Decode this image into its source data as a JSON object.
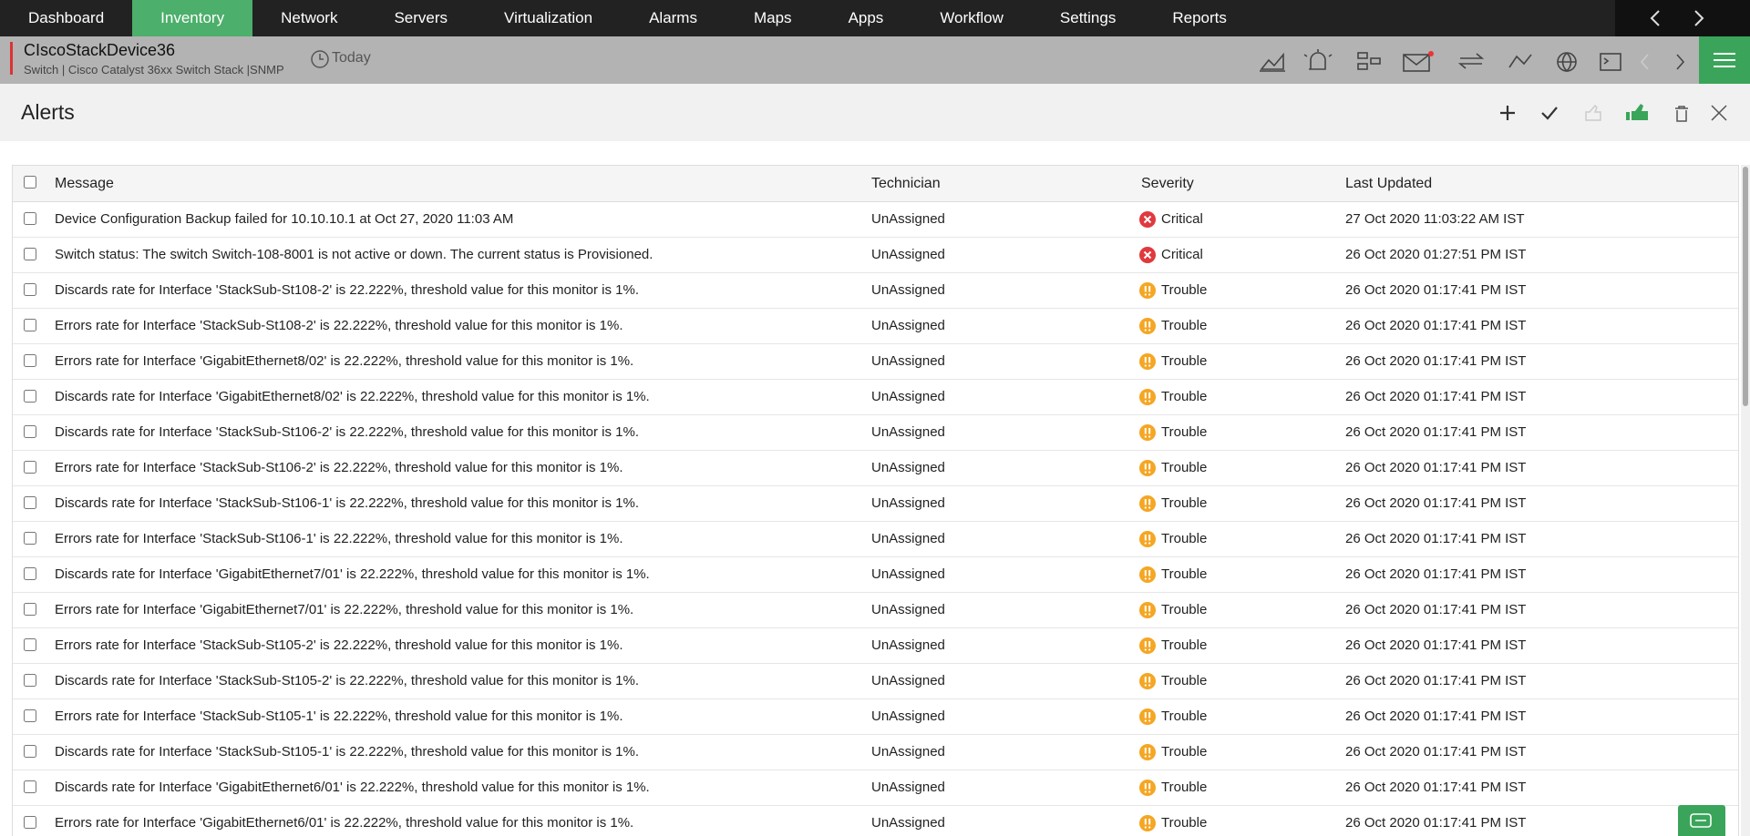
{
  "nav": {
    "items": [
      "Dashboard",
      "Inventory",
      "Network",
      "Servers",
      "Virtualization",
      "Alarms",
      "Maps",
      "Apps",
      "Workflow",
      "Settings",
      "Reports"
    ],
    "active": "Inventory"
  },
  "device": {
    "name": "CIscoStackDevice36",
    "subtitle": "Switch | Cisco Catalyst 36xx Switch Stack  |SNMP",
    "period": "Today"
  },
  "panel": {
    "title": "Alerts"
  },
  "table": {
    "headers": [
      "Message",
      "Technician",
      "Severity",
      "Last Updated"
    ],
    "rows": [
      [
        "Device Configuration Backup failed for 10.10.10.1 at Oct 27, 2020 11:03 AM",
        "UnAssigned",
        "Critical",
        "27 Oct 2020 11:03:22 AM IST"
      ],
      [
        "Switch status: The switch Switch-108-8001 is not active or down. The current status is Provisioned.",
        "UnAssigned",
        "Critical",
        "26 Oct 2020 01:27:51 PM IST"
      ],
      [
        "Discards rate for Interface 'StackSub-St108-2' is 22.222%, threshold value for this monitor is 1%.",
        "UnAssigned",
        "Trouble",
        "26 Oct 2020 01:17:41 PM IST"
      ],
      [
        "Errors rate for Interface 'StackSub-St108-2' is 22.222%, threshold value for this monitor is 1%.",
        "UnAssigned",
        "Trouble",
        "26 Oct 2020 01:17:41 PM IST"
      ],
      [
        "Errors rate for Interface 'GigabitEthernet8/02' is 22.222%, threshold value for this monitor is 1%.",
        "UnAssigned",
        "Trouble",
        "26 Oct 2020 01:17:41 PM IST"
      ],
      [
        "Discards rate for Interface 'GigabitEthernet8/02' is 22.222%, threshold value for this monitor is 1%.",
        "UnAssigned",
        "Trouble",
        "26 Oct 2020 01:17:41 PM IST"
      ],
      [
        "Discards rate for Interface 'StackSub-St106-2' is 22.222%, threshold value for this monitor is 1%.",
        "UnAssigned",
        "Trouble",
        "26 Oct 2020 01:17:41 PM IST"
      ],
      [
        "Errors rate for Interface 'StackSub-St106-2' is 22.222%, threshold value for this monitor is 1%.",
        "UnAssigned",
        "Trouble",
        "26 Oct 2020 01:17:41 PM IST"
      ],
      [
        "Discards rate for Interface 'StackSub-St106-1' is 22.222%, threshold value for this monitor is 1%.",
        "UnAssigned",
        "Trouble",
        "26 Oct 2020 01:17:41 PM IST"
      ],
      [
        "Errors rate for Interface 'StackSub-St106-1' is 22.222%, threshold value for this monitor is 1%.",
        "UnAssigned",
        "Trouble",
        "26 Oct 2020 01:17:41 PM IST"
      ],
      [
        "Discards rate for Interface 'GigabitEthernet7/01' is 22.222%, threshold value for this monitor is 1%.",
        "UnAssigned",
        "Trouble",
        "26 Oct 2020 01:17:41 PM IST"
      ],
      [
        "Errors rate for Interface 'GigabitEthernet7/01' is 22.222%, threshold value for this monitor is 1%.",
        "UnAssigned",
        "Trouble",
        "26 Oct 2020 01:17:41 PM IST"
      ],
      [
        "Errors rate for Interface 'StackSub-St105-2' is 22.222%, threshold value for this monitor is 1%.",
        "UnAssigned",
        "Trouble",
        "26 Oct 2020 01:17:41 PM IST"
      ],
      [
        "Discards rate for Interface 'StackSub-St105-2' is 22.222%, threshold value for this monitor is 1%.",
        "UnAssigned",
        "Trouble",
        "26 Oct 2020 01:17:41 PM IST"
      ],
      [
        "Errors rate for Interface 'StackSub-St105-1' is 22.222%, threshold value for this monitor is 1%.",
        "UnAssigned",
        "Trouble",
        "26 Oct 2020 01:17:41 PM IST"
      ],
      [
        "Discards rate for Interface 'StackSub-St105-1' is 22.222%, threshold value for this monitor is 1%.",
        "UnAssigned",
        "Trouble",
        "26 Oct 2020 01:17:41 PM IST"
      ],
      [
        "Discards rate for Interface 'GigabitEthernet6/01' is 22.222%, threshold value for this monitor is 1%.",
        "UnAssigned",
        "Trouble",
        "26 Oct 2020 01:17:41 PM IST"
      ],
      [
        "Errors rate for Interface 'GigabitEthernet6/01' is 22.222%, threshold value for this monitor is 1%.",
        "UnAssigned",
        "Trouble",
        "26 Oct 2020 01:17:41 PM IST"
      ]
    ]
  }
}
